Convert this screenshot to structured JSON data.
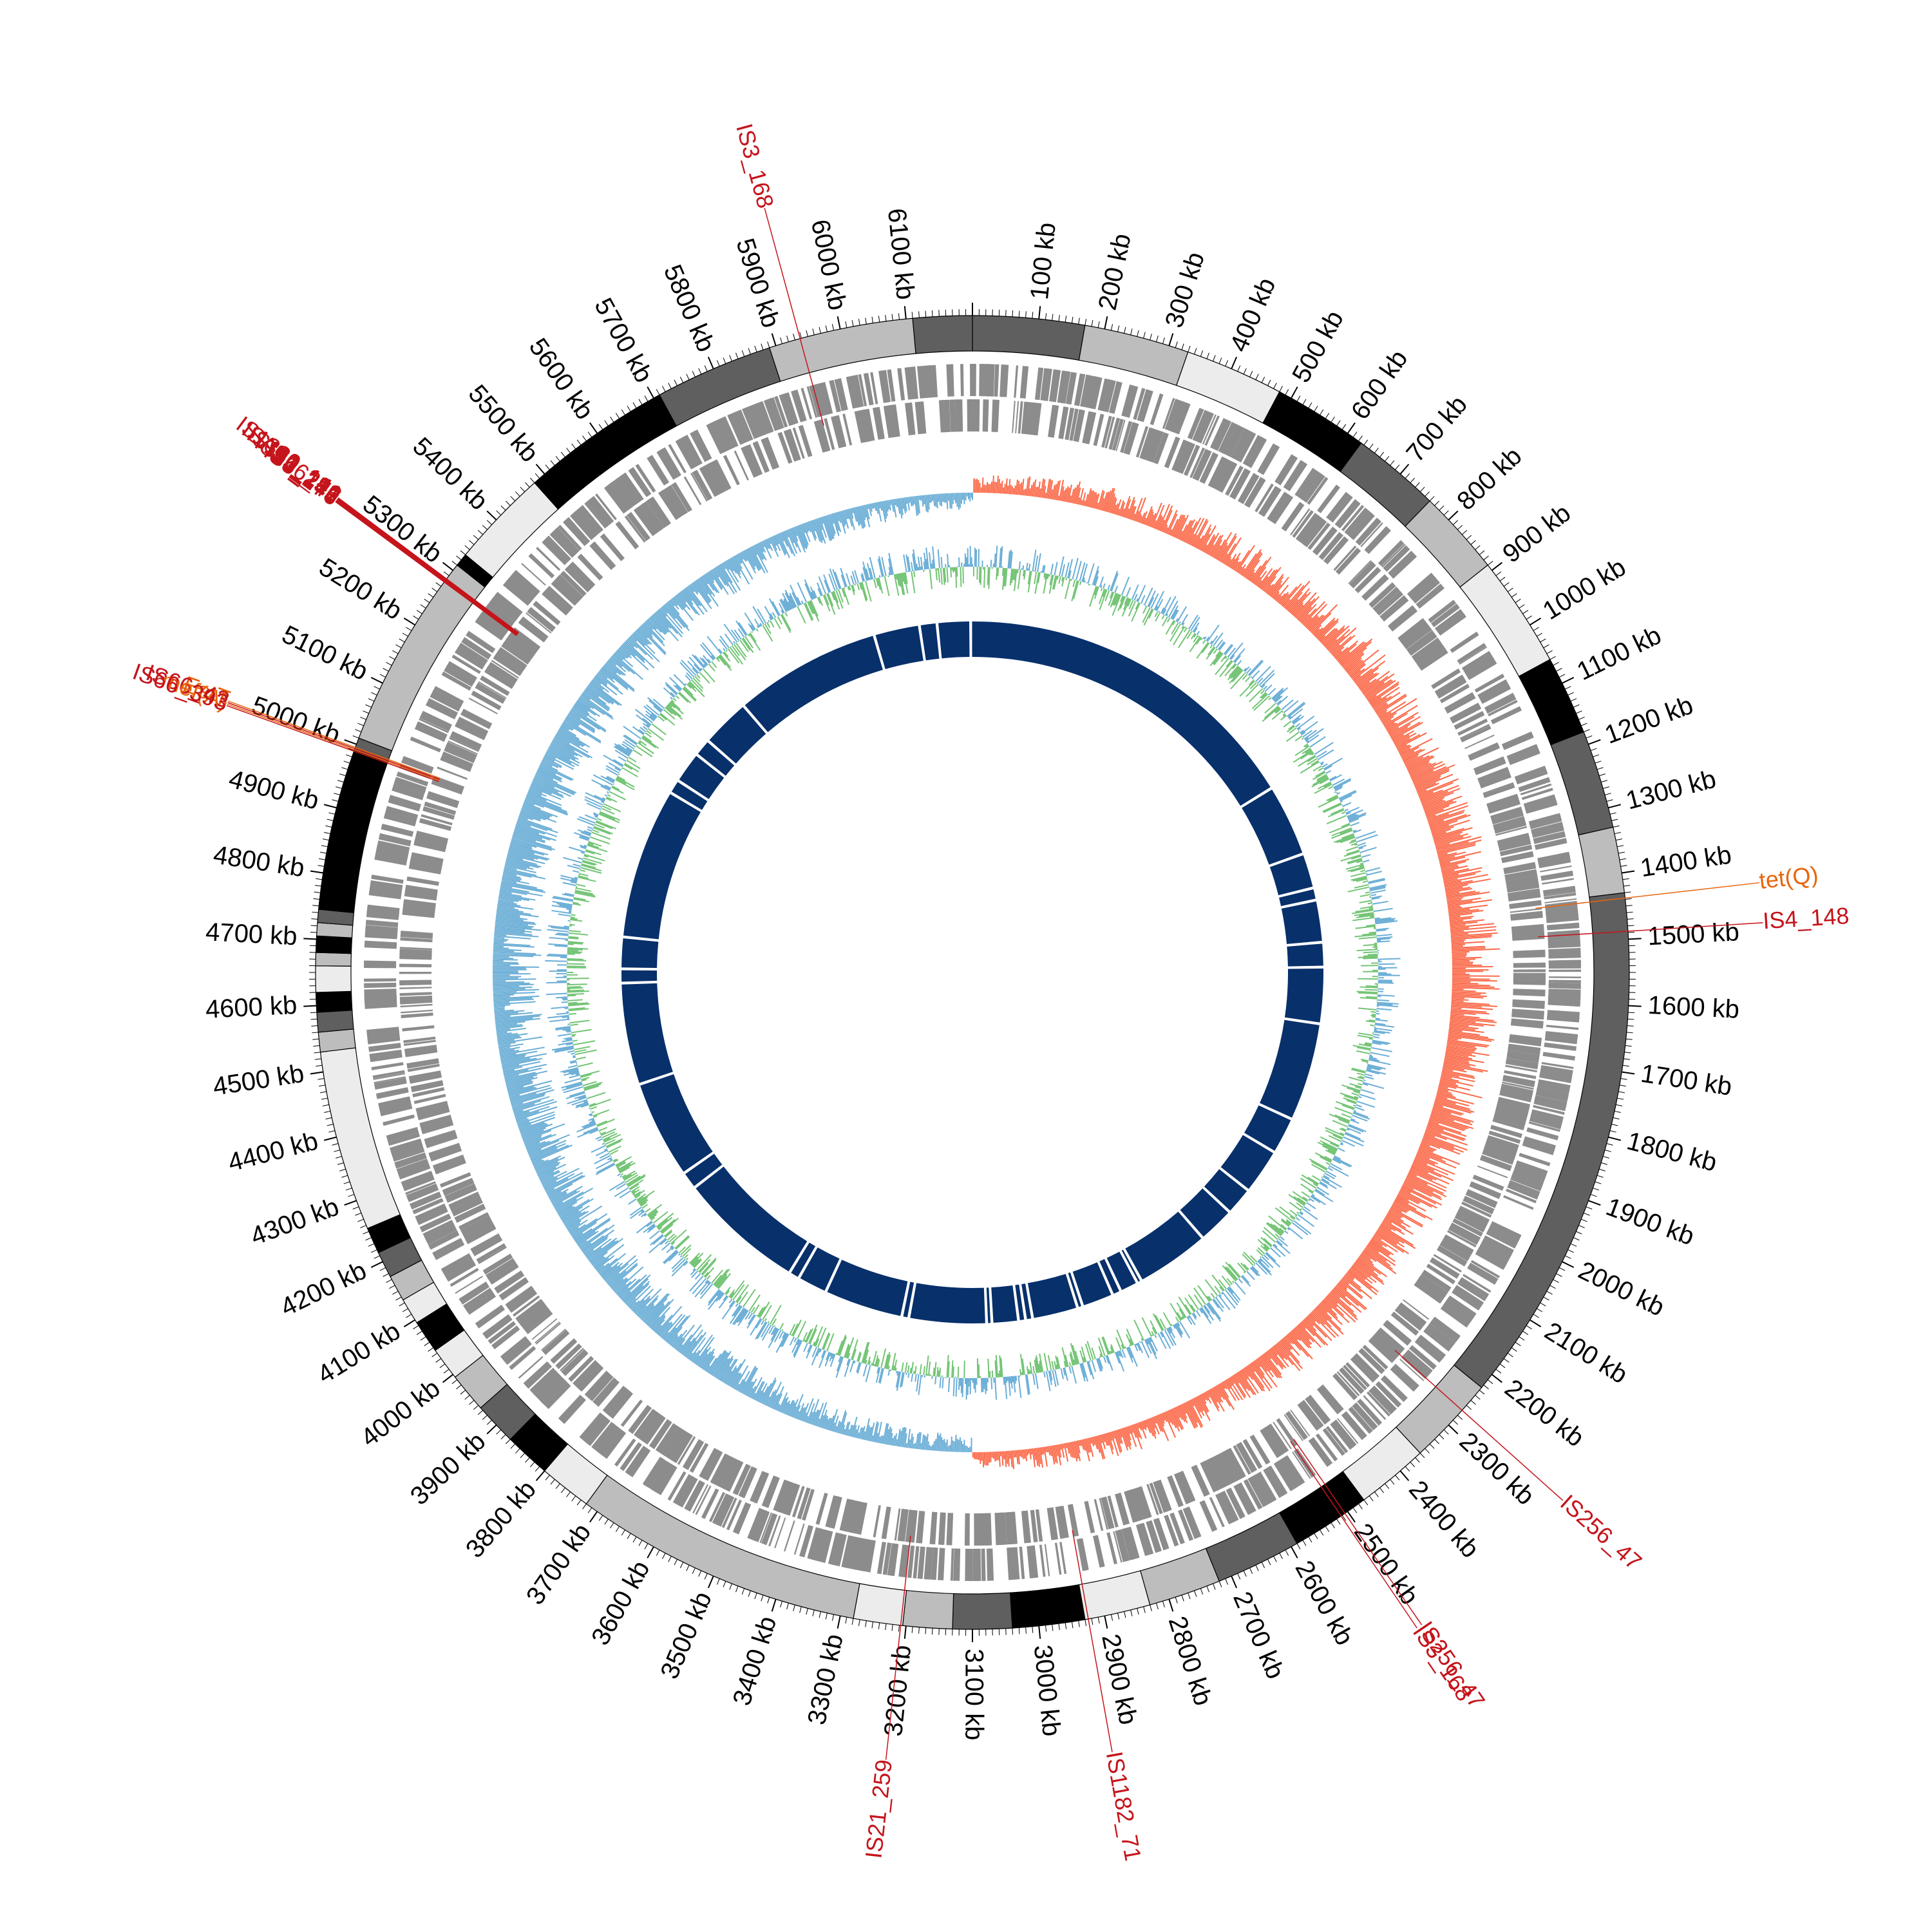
{
  "genome": {
    "length_kb": 6200,
    "tick_labels_kb": [
      100,
      200,
      300,
      400,
      500,
      600,
      700,
      800,
      900,
      1000,
      1100,
      1200,
      1300,
      1400,
      1500,
      1600,
      1700,
      1800,
      1900,
      2000,
      2100,
      2200,
      2300,
      2400,
      2500,
      2600,
      2700,
      2800,
      2900,
      3000,
      3100,
      3200,
      3300,
      3400,
      3500,
      3600,
      3700,
      3800,
      3900,
      4000,
      4100,
      4200,
      4300,
      4400,
      4500,
      4600,
      4700,
      4800,
      4900,
      5000,
      5100,
      5200,
      5300,
      5400,
      5500,
      5600,
      5700,
      5800,
      5900,
      6000,
      6100
    ],
    "tick_unit": "kb"
  },
  "contigs": [
    {
      "start": 0,
      "end": 170,
      "shade": "dark"
    },
    {
      "start": 170,
      "end": 330,
      "shade": "light"
    },
    {
      "start": 330,
      "end": 480,
      "shade": "lighter"
    },
    {
      "start": 480,
      "end": 625,
      "shade": "black"
    },
    {
      "start": 625,
      "end": 760,
      "shade": "dark"
    },
    {
      "start": 760,
      "end": 890,
      "shade": "light"
    },
    {
      "start": 890,
      "end": 1060,
      "shade": "lighter"
    },
    {
      "start": 1060,
      "end": 1180,
      "shade": "black"
    },
    {
      "start": 1180,
      "end": 1330,
      "shade": "dark"
    },
    {
      "start": 1330,
      "end": 1430,
      "shade": "light"
    },
    {
      "start": 1430,
      "end": 2225,
      "shade": "dark"
    },
    {
      "start": 2225,
      "end": 2360,
      "shade": "light"
    },
    {
      "start": 2360,
      "end": 2470,
      "shade": "lighter"
    },
    {
      "start": 2470,
      "end": 2590,
      "shade": "black"
    },
    {
      "start": 2590,
      "end": 2720,
      "shade": "dark"
    },
    {
      "start": 2720,
      "end": 2830,
      "shade": "light"
    },
    {
      "start": 2830,
      "end": 2930,
      "shade": "lighter"
    },
    {
      "start": 2930,
      "end": 3040,
      "shade": "black"
    },
    {
      "start": 3040,
      "end": 3130,
      "shade": "dark"
    },
    {
      "start": 3130,
      "end": 3205,
      "shade": "light"
    },
    {
      "start": 3205,
      "end": 3280,
      "shade": "lighter"
    },
    {
      "start": 3280,
      "end": 3720,
      "shade": "light"
    },
    {
      "start": 3720,
      "end": 3800,
      "shade": "lighter"
    },
    {
      "start": 3800,
      "end": 3870,
      "shade": "black"
    },
    {
      "start": 3870,
      "end": 3935,
      "shade": "dark"
    },
    {
      "start": 3935,
      "end": 3995,
      "shade": "light"
    },
    {
      "start": 3995,
      "end": 4045,
      "shade": "lighter"
    },
    {
      "start": 4045,
      "end": 4095,
      "shade": "black"
    },
    {
      "start": 4095,
      "end": 4135,
      "shade": "lighter"
    },
    {
      "start": 4135,
      "end": 4175,
      "shade": "light"
    },
    {
      "start": 4175,
      "end": 4215,
      "shade": "dark"
    },
    {
      "start": 4215,
      "end": 4255,
      "shade": "black"
    },
    {
      "start": 4255,
      "end": 4530,
      "shade": "lighter"
    },
    {
      "start": 4530,
      "end": 4560,
      "shade": "light"
    },
    {
      "start": 4560,
      "end": 4590,
      "shade": "dark"
    },
    {
      "start": 4590,
      "end": 4620,
      "shade": "black"
    },
    {
      "start": 4620,
      "end": 4660,
      "shade": "lighter"
    },
    {
      "start": 4660,
      "end": 4680,
      "shade": "light"
    },
    {
      "start": 4680,
      "end": 4705,
      "shade": "black"
    },
    {
      "start": 4705,
      "end": 4725,
      "shade": "light"
    },
    {
      "start": 4725,
      "end": 4745,
      "shade": "dark"
    },
    {
      "start": 4745,
      "end": 4990,
      "shade": "black"
    },
    {
      "start": 4990,
      "end": 5010,
      "shade": "dark"
    },
    {
      "start": 5010,
      "end": 5310,
      "shade": "light"
    },
    {
      "start": 5310,
      "end": 5330,
      "shade": "black"
    },
    {
      "start": 5330,
      "end": 5480,
      "shade": "lighter"
    },
    {
      "start": 5480,
      "end": 5710,
      "shade": "black"
    },
    {
      "start": 5710,
      "end": 5890,
      "shade": "dark"
    },
    {
      "start": 5890,
      "end": 6110,
      "shade": "light"
    },
    {
      "start": 6110,
      "end": 6200,
      "shade": "dark"
    }
  ],
  "colors": {
    "dark": "#5f5f5f",
    "light": "#bdbdbd",
    "lighter": "#ececec",
    "black": "#000000",
    "gc_content_neg": "#fb6a4a",
    "gc_skew_pos": "#6baed6",
    "gc_skew_alt": "#74c476",
    "homology": "#08306b",
    "cds": "#8c8c8c",
    "is_label": "#c5141b",
    "arg_label": "#e8650d"
  },
  "features": [
    {
      "pos": 5938,
      "name": "IS3_168",
      "type": "IS"
    },
    {
      "pos": 5278,
      "name": "IS3_176",
      "type": "IS"
    },
    {
      "pos": 5279,
      "name": "IS4_243",
      "type": "IS"
    },
    {
      "pos": 5280,
      "name": "IS256_47",
      "type": "IS"
    },
    {
      "pos": 5281,
      "name": "IS3_176",
      "type": "IS"
    },
    {
      "pos": 5282,
      "name": "IS110_219",
      "type": "IS"
    },
    {
      "pos": 5283,
      "name": "ISAS1_192",
      "type": "IS"
    },
    {
      "pos": 5284,
      "name": "IS1380_141",
      "type": "IS"
    },
    {
      "pos": 4995,
      "name": "EstT",
      "type": "ARG"
    },
    {
      "pos": 4993,
      "name": "IS66_43",
      "type": "IS"
    },
    {
      "pos": 4991,
      "name": "mef(A)",
      "type": "ARG"
    },
    {
      "pos": 4989,
      "name": "IS66_393",
      "type": "IS"
    },
    {
      "pos": 1438,
      "name": "tet(Q)",
      "type": "ARG"
    },
    {
      "pos": 1488,
      "name": "IS4_148",
      "type": "IS"
    },
    {
      "pos": 2270,
      "name": "IS256_47",
      "type": "IS"
    },
    {
      "pos": 2505,
      "name": "IS256_47",
      "type": "IS"
    },
    {
      "pos": 2512,
      "name": "IS3_168",
      "type": "IS"
    },
    {
      "pos": 2925,
      "name": "IS1182_71",
      "type": "IS"
    },
    {
      "pos": 3208,
      "name": "IS21_259",
      "type": "IS"
    }
  ],
  "homology_gaps_kb": [
    1005,
    1210,
    1310,
    1345,
    1465,
    1535,
    1695,
    1975,
    2080,
    2210,
    2290,
    2395,
    2605,
    2618,
    2670,
    2695,
    2785,
    2800,
    2930,
    2950,
    2970,
    3045,
    3060,
    3280,
    3300,
    3525,
    3610,
    3640,
    4000,
    4050,
    4330,
    4620,
    4660,
    4750,
    5180,
    5220,
    5310,
    5360,
    5500,
    5920,
    6050,
    6100,
    6195
  ]
}
